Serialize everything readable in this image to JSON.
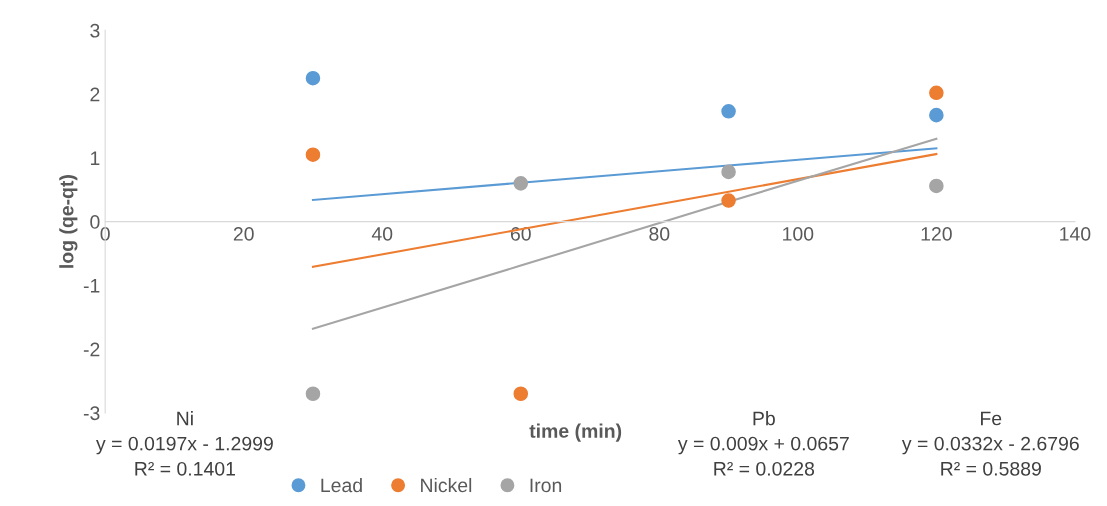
{
  "chart_data": {
    "type": "scatter",
    "xlabel": "time (min)",
    "ylabel": "log (qe-qt)",
    "x": [
      30,
      60,
      90,
      120
    ],
    "series": [
      {
        "name": "Lead",
        "color": "#5b9bd5",
        "values": [
          2.25,
          null,
          1.73,
          1.67
        ]
      },
      {
        "name": "Nickel",
        "color": "#ed7d31",
        "values": [
          1.05,
          -2.7,
          0.33,
          2.02
        ]
      },
      {
        "name": "Iron",
        "color": "#a5a5a5",
        "values": [
          -2.7,
          0.6,
          0.78,
          0.56
        ]
      },
      {
        "type": "line",
        "marker": "none",
        "color": "#5b9bd5",
        "values": [
          0.34,
          0.61,
          0.88,
          1.15
        ]
      },
      {
        "type": "line",
        "marker": "none",
        "color": "#ed7d31",
        "values": [
          -0.71,
          -0.12,
          0.47,
          1.06
        ]
      },
      {
        "type": "line",
        "marker": "none",
        "color": "#a5a5a5",
        "values": [
          -1.68,
          -0.69,
          0.31,
          1.3
        ]
      }
    ],
    "xlim": [
      0,
      140
    ],
    "xticks": [
      0,
      20,
      40,
      60,
      80,
      100,
      120,
      140
    ],
    "ylim": [
      -3,
      3
    ],
    "yticks": [
      -3,
      -2,
      -1,
      0,
      1,
      2,
      3
    ],
    "grid": false,
    "legend": "bottom",
    "marker": "circle",
    "annotations": [
      "Ni\ny = 0.0197x - 1.2999\nR² = 0.1401",
      "Pb\ny = 0.009x + 0.0657\nR² = 0.0228",
      "Fe\ny = 0.0332x - 2.6796\nR² = 0.5889"
    ]
  }
}
